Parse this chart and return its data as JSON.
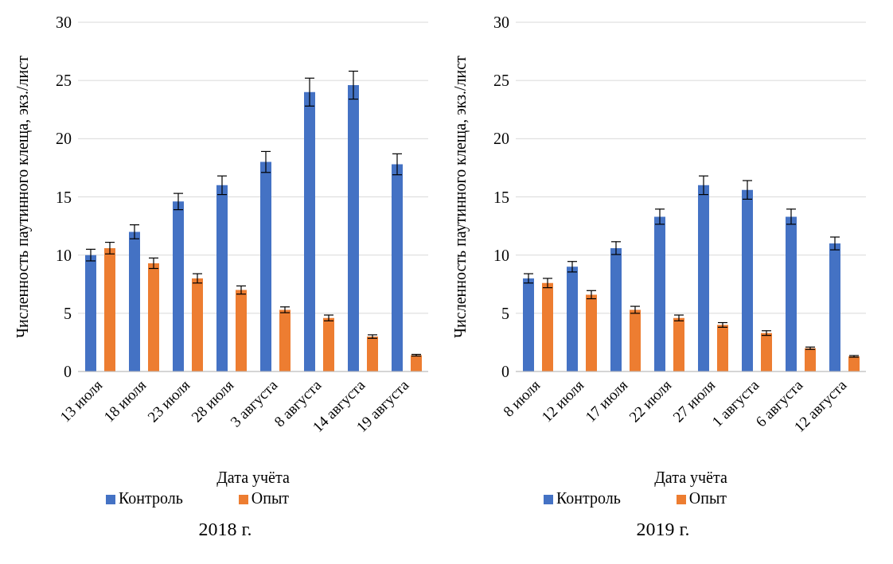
{
  "chart_data": [
    {
      "type": "bar",
      "title": "2018 г.",
      "xlabel": "Дата учёта",
      "ylabel": "Численность паутинного клеща, экз./лист",
      "categories": [
        "13 июля",
        "18 июля",
        "23 июля",
        "28 июля",
        "3 августа",
        "8 августа",
        "14 августа",
        "19 августа"
      ],
      "series": [
        {
          "name": "Контроль",
          "color": "#4472c4",
          "values": [
            10,
            12,
            14.6,
            16,
            18,
            24,
            24.6,
            17.8
          ],
          "errors": [
            0.5,
            0.6,
            0.7,
            0.8,
            0.9,
            1.2,
            1.2,
            0.9
          ]
        },
        {
          "name": "Опыт",
          "color": "#ed7d31",
          "values": [
            10.6,
            9.3,
            8,
            7,
            5.3,
            4.6,
            3,
            1.4
          ],
          "errors": [
            0.5,
            0.45,
            0.4,
            0.35,
            0.25,
            0.25,
            0.15,
            0.07
          ]
        }
      ],
      "ylim": [
        0,
        30
      ],
      "yticks": [
        0,
        5,
        10,
        15,
        20,
        25,
        30
      ],
      "grid": "y",
      "legend": "bottom"
    },
    {
      "type": "bar",
      "title": "2019 г.",
      "xlabel": "Дата учёта",
      "ylabel": "Численность паутинного клеща, экз./лист",
      "categories": [
        "8 июля",
        "12 июля",
        "17 июля",
        "22 июля",
        "27 июля",
        "1 августа",
        "6 августа",
        "12 августа"
      ],
      "series": [
        {
          "name": "Контроль",
          "color": "#4472c4",
          "values": [
            8,
            9,
            10.6,
            13.3,
            16,
            15.6,
            13.3,
            11
          ],
          "errors": [
            0.4,
            0.45,
            0.55,
            0.65,
            0.8,
            0.8,
            0.65,
            0.55
          ]
        },
        {
          "name": "Опыт",
          "color": "#ed7d31",
          "values": [
            7.6,
            6.6,
            5.3,
            4.6,
            4,
            3.3,
            2,
            1.3
          ],
          "errors": [
            0.4,
            0.35,
            0.3,
            0.25,
            0.2,
            0.2,
            0.1,
            0.07
          ]
        }
      ],
      "ylim": [
        0,
        30
      ],
      "yticks": [
        0,
        5,
        10,
        15,
        20,
        25,
        30
      ],
      "grid": "y",
      "legend": "bottom"
    }
  ]
}
